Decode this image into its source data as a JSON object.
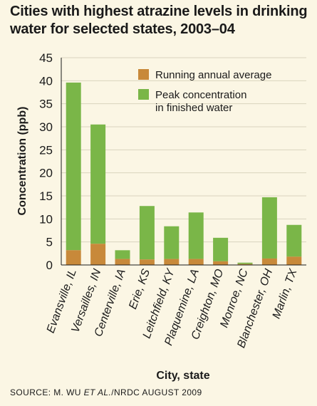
{
  "title": "Cities with highest atrazine levels in drinking water for selected states, 2003–04",
  "source": {
    "prefix": "SOURCE: M. WU ",
    "italic": "ET AL.",
    "suffix": "/NRDC AUGUST 2009"
  },
  "colors": {
    "background": "#fbf6e4",
    "running_annual_average": "#c8893a",
    "peak_concentration": "#7ab648",
    "gridline": "#d9d3be",
    "axis": "#1a1a1a"
  },
  "chart_data": {
    "type": "bar",
    "stacked": true,
    "title": "Cities with highest atrazine levels in drinking water for selected states, 2003–04",
    "xlabel": "City, state",
    "ylabel": "Concentration (ppb)",
    "ylim": [
      0,
      45
    ],
    "yticks": [
      0,
      5,
      10,
      15,
      20,
      25,
      30,
      35,
      40,
      45
    ],
    "grid": true,
    "legend_position": "top-right",
    "categories": [
      "Evansville, IL",
      "Versailles, IN",
      "Centerville, IA",
      "Erie, KS",
      "Leitchfield, KY",
      "Plaquemine, LA",
      "Creighton, MO",
      "Monroe, NC",
      "Blanchester, OH",
      "Marlin, TX"
    ],
    "series": [
      {
        "name": "Running annual average",
        "values": [
          3.2,
          4.6,
          1.3,
          1.2,
          1.3,
          1.3,
          0.8,
          0.2,
          1.4,
          1.8
        ]
      },
      {
        "name": "Peak concentration in finished water",
        "values": [
          39.6,
          30.5,
          3.2,
          12.8,
          8.4,
          11.4,
          5.9,
          0.5,
          14.7,
          8.7
        ]
      }
    ],
    "legend": [
      {
        "label_lines": [
          "Running annual average"
        ]
      },
      {
        "label_lines": [
          "Peak concentration",
          "in finished water"
        ]
      }
    ]
  }
}
